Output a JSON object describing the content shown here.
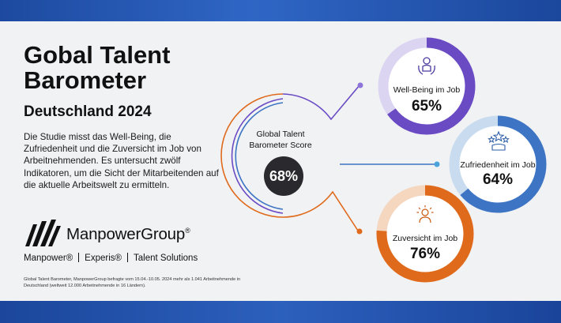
{
  "header": {
    "title": "Gobal Talent Barometer",
    "subtitle": "Deutschland 2024"
  },
  "description": "Die Studie misst das Well-Being, die Zufriedenheit und die Zuversicht im Job von Arbeitnehmenden. Es untersucht zwölf Indikatoren, um die Sicht der Mitarbeitenden auf die aktuelle Arbeitswelt zu ermitteln.",
  "brand": {
    "name": "ManpowerGroup",
    "registered": "®",
    "subbrands": [
      "Manpower®",
      "Experis®",
      "Talent Solutions"
    ]
  },
  "footnote": "Global Talent Barometer, ManpowerGroup befragte vom 15.04.-10.05. 2024 mehr als 1.041 Arbeitnehmende in Deutschland (weltweit 12.000 Arbeitnehmende in 16 Ländern).",
  "score": {
    "label": "Global Talent Barometer Score",
    "value": "68%"
  },
  "metrics": [
    {
      "label": "Well-Being im Job",
      "value": "65%",
      "fraction": 0.65,
      "color": "#6a4bc4",
      "track": "#dcd5f2",
      "icon": "wellbeing-icon"
    },
    {
      "label": "Zufriedenheit im Job",
      "value": "64%",
      "fraction": 0.64,
      "color": "#3d74c4",
      "track": "#c9dcef",
      "icon": "stars-icon"
    },
    {
      "label": "Zuversicht im Job",
      "value": "76%",
      "fraction": 0.76,
      "color": "#e06a1b",
      "track": "#f5d6bf",
      "icon": "sun-person-icon"
    }
  ],
  "colors": {
    "accent_dark": "#2a2a2e",
    "band": "#2659b4"
  }
}
